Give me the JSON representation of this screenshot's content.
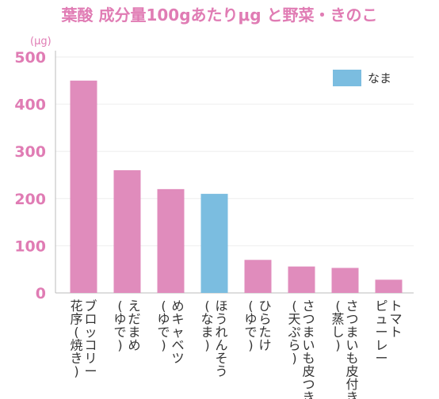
{
  "chart_data": {
    "type": "bar",
    "title": "葉酸 成分量100gあたりμg と野菜・きのこ",
    "ylabel": "(μg)",
    "ylim": [
      0,
      500
    ],
    "yticks": [
      0,
      100,
      200,
      300,
      400,
      500
    ],
    "grid": true,
    "legend_position": "top-right",
    "categories": [
      [
        "ブロッコリー",
        "花序(焼き)"
      ],
      [
        "えだまめ",
        "(ゆで)"
      ],
      [
        "めキャベツ",
        "(ゆで)"
      ],
      [
        "ほうれんそう",
        "(なま)"
      ],
      [
        "ひらたけ",
        "(ゆで)"
      ],
      [
        "さつまいも皮つき",
        "(天ぷら)"
      ],
      [
        "さつまいも皮付き",
        "(蒸し)"
      ],
      [
        "トマト",
        "ピューレー"
      ]
    ],
    "values": [
      450,
      260,
      220,
      210,
      70,
      56,
      53,
      28
    ],
    "highlight_index": 3,
    "legend": [
      {
        "label": "なま",
        "color": "#7bbde0"
      }
    ],
    "colors": {
      "bar": "#e08cbc",
      "highlight": "#7bbde0",
      "title": "#e07cb4",
      "axis_text": "#e07cb4",
      "grid": "#eeeeee",
      "axis": "#bbbbbb"
    }
  }
}
